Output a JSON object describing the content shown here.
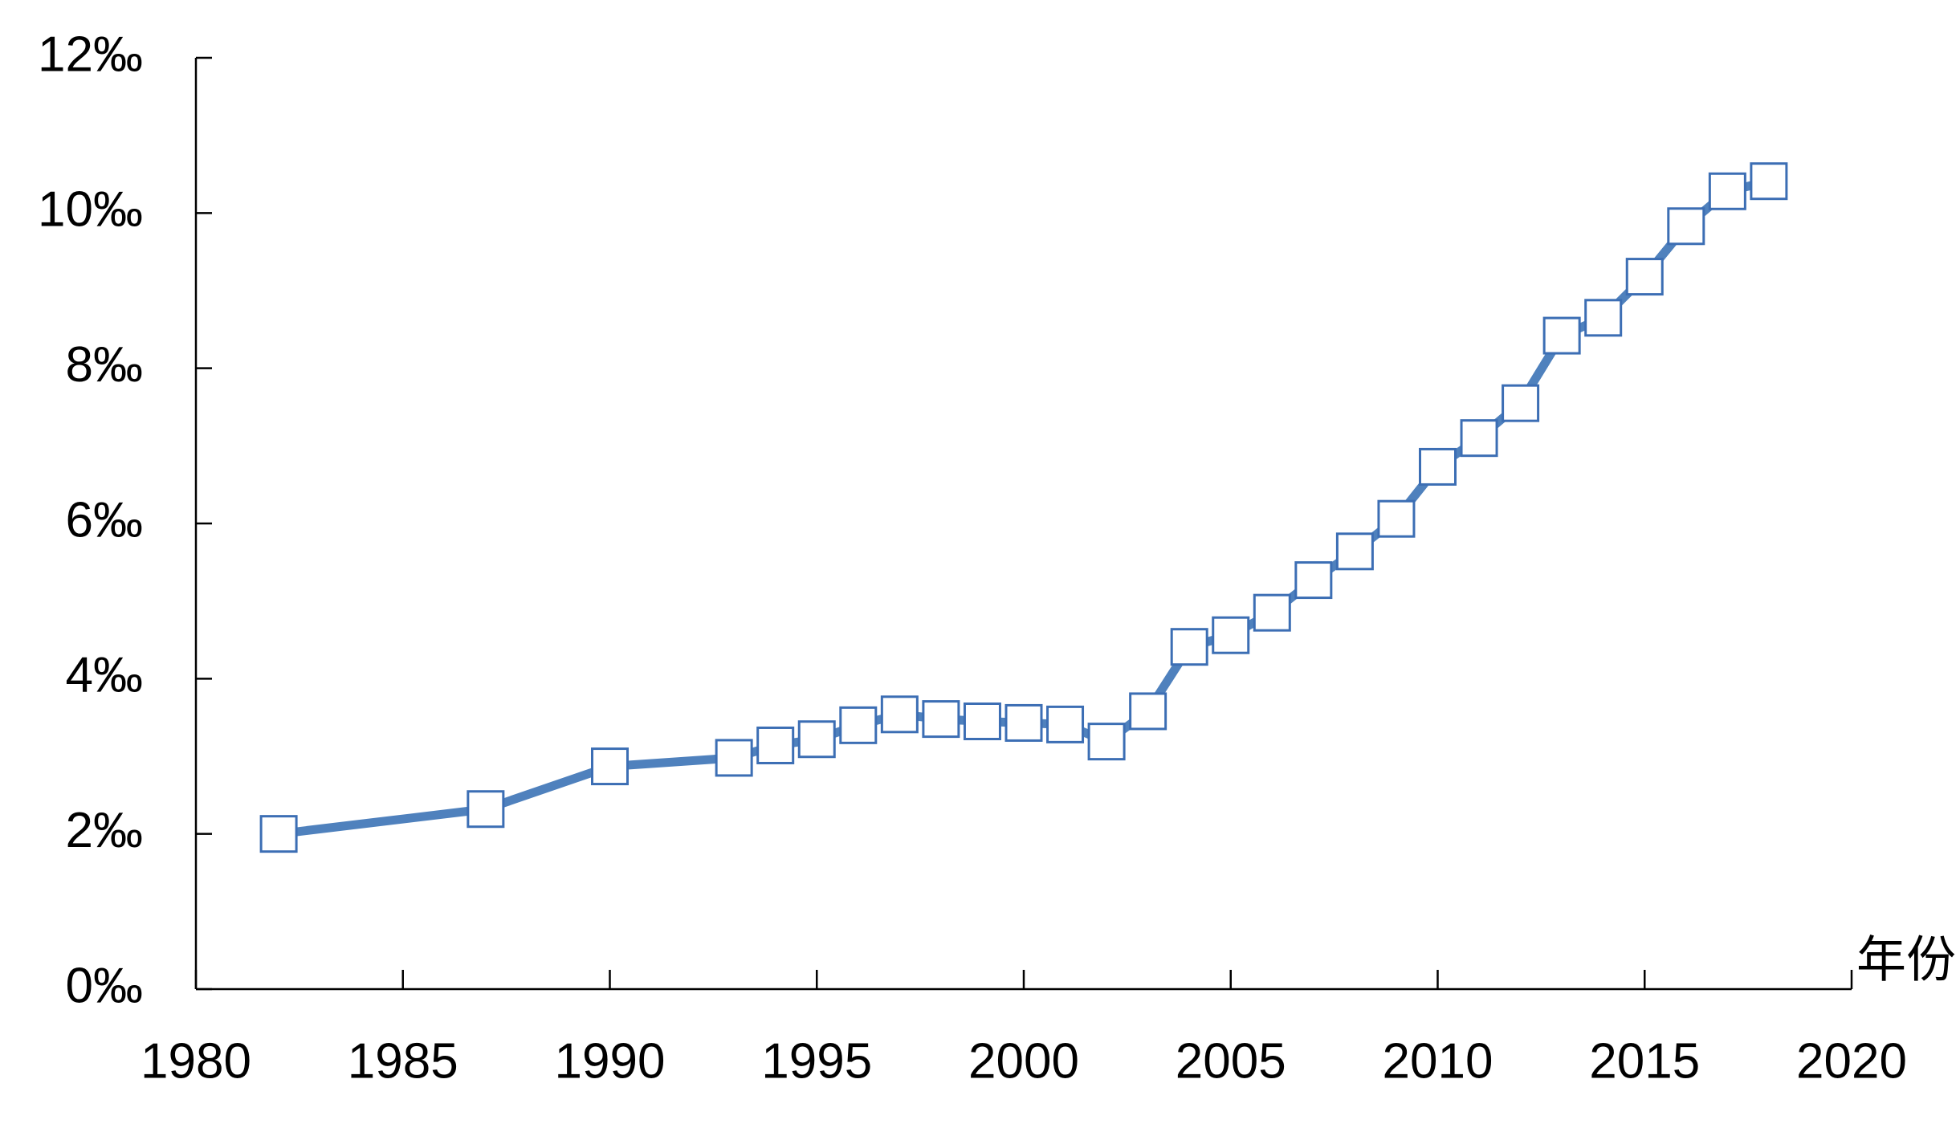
{
  "chart_data": {
    "type": "line",
    "x_label": "年份",
    "x": [
      1982,
      1987,
      1990,
      1993,
      1994,
      1995,
      1996,
      1997,
      1998,
      1999,
      2000,
      2001,
      2002,
      2003,
      2004,
      2005,
      2006,
      2007,
      2008,
      2009,
      2010,
      2011,
      2012,
      2013,
      2014,
      2015,
      2016,
      2017,
      2018
    ],
    "values": [
      2.0,
      2.32,
      2.87,
      2.98,
      3.14,
      3.22,
      3.4,
      3.54,
      3.48,
      3.45,
      3.43,
      3.41,
      3.19,
      3.58,
      4.41,
      4.56,
      4.85,
      5.27,
      5.64,
      6.06,
      6.73,
      7.1,
      7.55,
      8.42,
      8.65,
      9.18,
      9.83,
      10.28,
      10.41
    ],
    "color": "#4f81bd",
    "marker_edge_color": "#3c6eb4",
    "xlim": [
      1980,
      2020
    ],
    "xticks": [
      1980,
      1985,
      1990,
      1995,
      2000,
      2005,
      2010,
      2015,
      2020
    ],
    "ylim": [
      0,
      12
    ],
    "yticks": [
      {
        "value": 0,
        "label": "0‰"
      },
      {
        "value": 2,
        "label": "2‰"
      },
      {
        "value": 4,
        "label": "4‰"
      },
      {
        "value": 6,
        "label": "6‰"
      },
      {
        "value": 8,
        "label": "8‰"
      },
      {
        "value": 10,
        "label": "10‰"
      },
      {
        "value": 12,
        "label": "12‰"
      }
    ]
  }
}
